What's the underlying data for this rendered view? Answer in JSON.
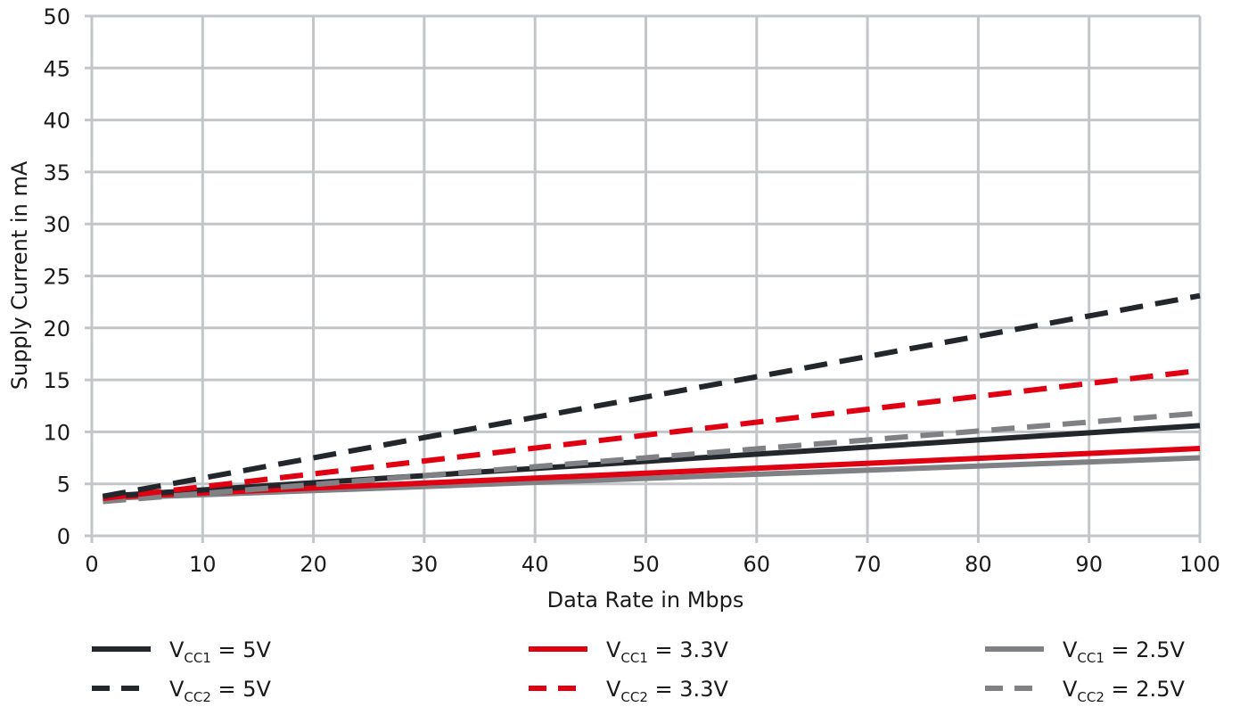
{
  "chart_data": {
    "type": "line",
    "title": "",
    "xlabel": "Data Rate in Mbps",
    "ylabel": "Supply Current in mA",
    "xlim": [
      0,
      100
    ],
    "ylim": [
      0,
      50
    ],
    "xticks": [
      "0",
      "10",
      "20",
      "30",
      "40",
      "50",
      "60",
      "70",
      "80",
      "90",
      "100"
    ],
    "yticks": [
      "0",
      "5",
      "10",
      "15",
      "20",
      "25",
      "30",
      "35",
      "40",
      "45",
      "50"
    ],
    "grid": true,
    "legend_position": "bottom",
    "series": [
      {
        "name": "VCC1 = 5V",
        "label_main": "V",
        "label_sub": "CC1",
        "label_rest": " = 5V",
        "color": "#23262b",
        "dash": "solid",
        "x": [
          1,
          100
        ],
        "y": [
          3.8,
          10.6
        ]
      },
      {
        "name": "VCC2 = 5V",
        "label_main": "V",
        "label_sub": "CC2",
        "label_rest": " = 5V",
        "color": "#23262b",
        "dash": "dashed",
        "x": [
          1,
          100
        ],
        "y": [
          3.8,
          23.1
        ]
      },
      {
        "name": "VCC1 = 3.3V",
        "label_main": "V",
        "label_sub": "CC1",
        "label_rest": " = 3.3V",
        "color": "#e00012",
        "dash": "solid",
        "x": [
          1,
          100
        ],
        "y": [
          3.7,
          8.4
        ]
      },
      {
        "name": "VCC2 = 3.3V",
        "label_main": "V",
        "label_sub": "CC2",
        "label_rest": " = 3.3V",
        "color": "#e00012",
        "dash": "dashed",
        "x": [
          1,
          100
        ],
        "y": [
          3.6,
          15.9
        ]
      },
      {
        "name": "VCC1 = 2.5V",
        "label_main": "V",
        "label_sub": "CC1",
        "label_rest": " = 2.5V",
        "color": "#7f8184",
        "dash": "solid",
        "x": [
          1,
          100
        ],
        "y": [
          3.6,
          7.5
        ]
      },
      {
        "name": "VCC2 = 2.5V",
        "label_main": "V",
        "label_sub": "CC2",
        "label_rest": " = 2.5V",
        "color": "#7f8184",
        "dash": "dashed",
        "x": [
          1,
          100
        ],
        "y": [
          3.3,
          11.8
        ]
      }
    ]
  }
}
